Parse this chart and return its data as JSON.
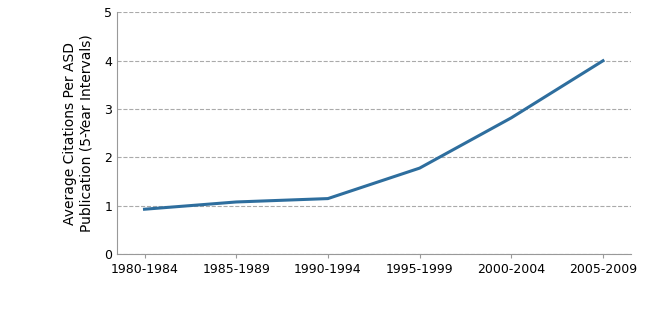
{
  "x_labels": [
    "1980-1984",
    "1985-1989",
    "1990-1994",
    "1995-1999",
    "2000-2004",
    "2005-2009"
  ],
  "y_values": [
    0.93,
    1.08,
    1.15,
    1.78,
    2.82,
    4.0
  ],
  "line_color": "#2E6E9E",
  "line_width": 2.2,
  "ylabel": "Average Citations Per ASD\nPublication (5-Year Intervals)",
  "ylim": [
    0,
    5
  ],
  "yticks": [
    0,
    1,
    2,
    3,
    4,
    5
  ],
  "grid_color": "#aaaaaa",
  "grid_linestyle": "--",
  "background_color": "#ffffff",
  "ylabel_fontsize": 10,
  "tick_fontsize": 9,
  "spine_color": "#999999"
}
